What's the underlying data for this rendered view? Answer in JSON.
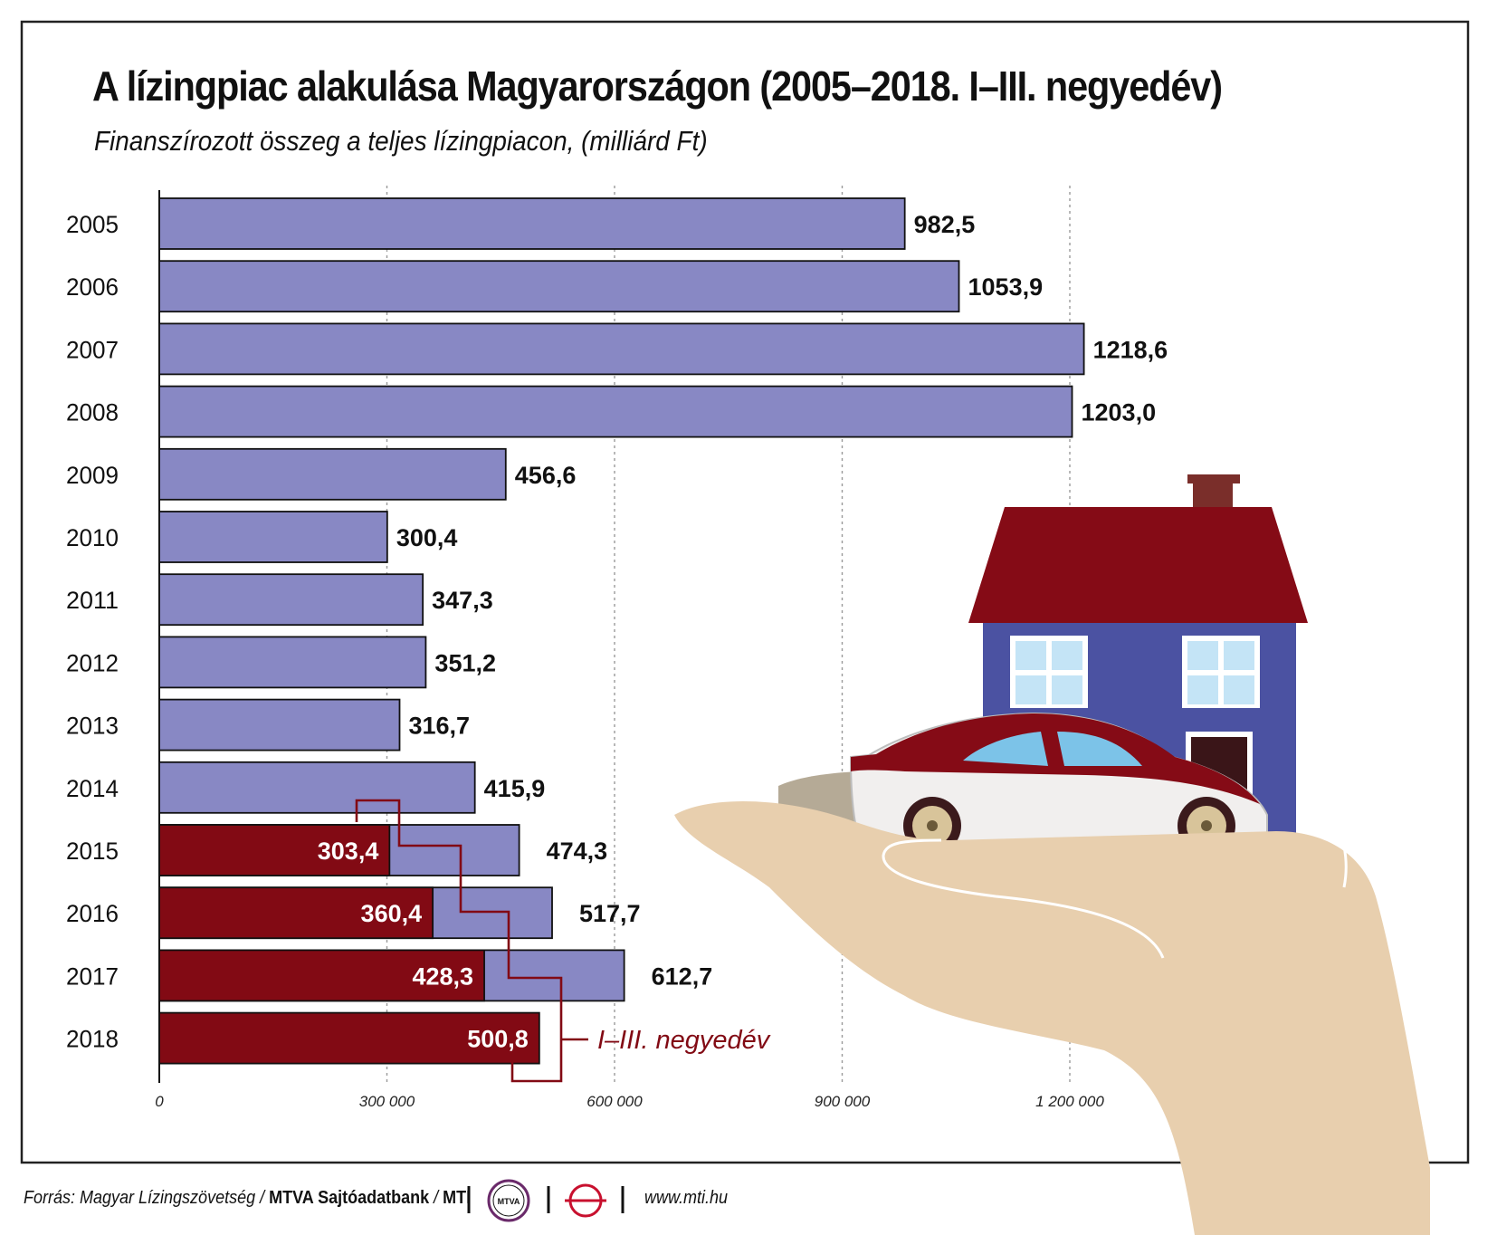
{
  "title": "A lízingpiac alakulása Magyarországon (2005–2018. I–III. negyedév)",
  "subtitle": "Finanszírozott összeg a teljes lízingpiacon, (milliárd Ft)",
  "footer": {
    "source_prefix": "Forrás: Magyar Lízingszövetség / ",
    "source_bold": "MTVA Sajtóadatbank",
    "source_sep": " / ",
    "source_mti": "MTI",
    "logo_text": "MTVA",
    "url": "www.mti.hu"
  },
  "colors": {
    "full_year": "#8888c4",
    "q1_q3": "#820a14",
    "roof": "#850b16",
    "house_wall": "#4b52a2",
    "window": "#c4e4f6",
    "chimney": "#7a2e2a",
    "hand": "#e8cfae",
    "shadow": "#b5aa96"
  },
  "chart_data": {
    "type": "bar",
    "orientation": "horizontal",
    "categories": [
      "2005",
      "2006",
      "2007",
      "2008",
      "2009",
      "2010",
      "2011",
      "2012",
      "2013",
      "2014",
      "2015",
      "2016",
      "2017",
      "2018"
    ],
    "series": [
      {
        "values": [
          982.5,
          1053.9,
          1218.6,
          1203.0,
          456.6,
          300.4,
          347.3,
          351.2,
          316.7,
          415.9,
          474.3,
          517.7,
          612.7,
          null
        ],
        "labels": [
          "982,5",
          "1053,9",
          "1218,6",
          "1203,0",
          "456,6",
          "300,4",
          "347,3",
          "351,2",
          "316,7",
          "415,9",
          "474,3",
          "517,7",
          "612,7",
          ""
        ]
      },
      {
        "name": "I–III. negyedév",
        "values": [
          null,
          null,
          null,
          null,
          null,
          null,
          null,
          null,
          null,
          null,
          303.4,
          360.4,
          428.3,
          500.8
        ],
        "labels": [
          "",
          "",
          "",
          "",
          "",
          "",
          "",
          "",
          "",
          "",
          "303,4",
          "360,4",
          "428,3",
          "500,8"
        ]
      }
    ],
    "xticks": [
      0,
      300,
      600,
      900,
      1200
    ],
    "xtick_labels": [
      "0",
      "300 000",
      "600 000",
      "900 000",
      "1 200 000"
    ],
    "xlim": [
      0,
      1200
    ],
    "grid": "vertical dotted",
    "annotation": "I–III. negyedév"
  }
}
